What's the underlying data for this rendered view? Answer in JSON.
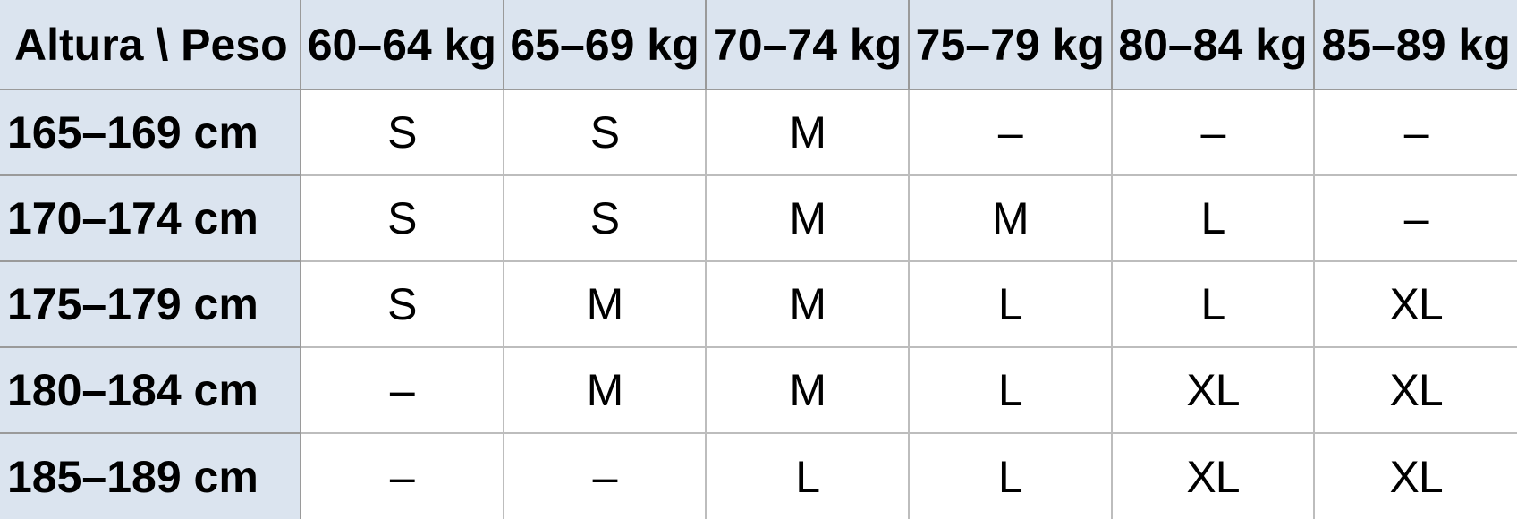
{
  "table": {
    "corner_header": "Altura \\ Peso",
    "column_headers": [
      "60–64 kg",
      "65–69 kg",
      "70–74 kg",
      "75–79 kg",
      "80–84 kg",
      "85–89 kg"
    ],
    "rows": [
      {
        "height": "165–169 cm",
        "values": [
          "S",
          "S",
          "M",
          "–",
          "–",
          "–"
        ]
      },
      {
        "height": "170–174 cm",
        "values": [
          "S",
          "S",
          "M",
          "M",
          "L",
          "–"
        ]
      },
      {
        "height": "175–179 cm",
        "values": [
          "S",
          "M",
          "M",
          "L",
          "L",
          "XL"
        ]
      },
      {
        "height": "180–184 cm",
        "values": [
          "–",
          "M",
          "M",
          "L",
          "XL",
          "XL"
        ]
      },
      {
        "height": "185–189 cm",
        "values": [
          "–",
          "–",
          "L",
          "L",
          "XL",
          "XL"
        ]
      }
    ]
  },
  "colors": {
    "shaded_cell_fill": "#dbe4ef",
    "border_dark": "#9a9a9a",
    "border_light": "#bdbdbd",
    "text": "#000000",
    "background": "#ffffff"
  }
}
